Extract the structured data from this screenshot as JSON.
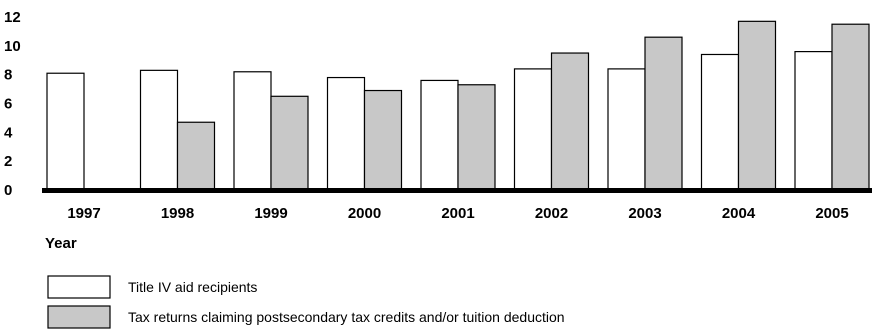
{
  "chart_data": {
    "type": "bar",
    "title": "",
    "xlabel": "Year",
    "ylabel": "",
    "ylim": [
      0,
      12
    ],
    "yticks": [
      0,
      2,
      4,
      6,
      8,
      10,
      12
    ],
    "categories": [
      "1997",
      "1998",
      "1999",
      "2000",
      "2001",
      "2002",
      "2003",
      "2004",
      "2005"
    ],
    "series": [
      {
        "name": "Title IV aid recipients",
        "color": "#ffffff",
        "values": [
          8.1,
          8.3,
          8.2,
          7.8,
          7.6,
          8.4,
          8.4,
          9.4,
          9.6
        ]
      },
      {
        "name": "Tax returns claiming postsecondary tax credits and/or tuition deduction",
        "color": "#c8c8c8",
        "values": [
          null,
          4.7,
          6.5,
          6.9,
          7.3,
          9.5,
          10.6,
          11.7,
          11.5
        ]
      }
    ],
    "grid": false,
    "legend_position": "bottom-left"
  }
}
